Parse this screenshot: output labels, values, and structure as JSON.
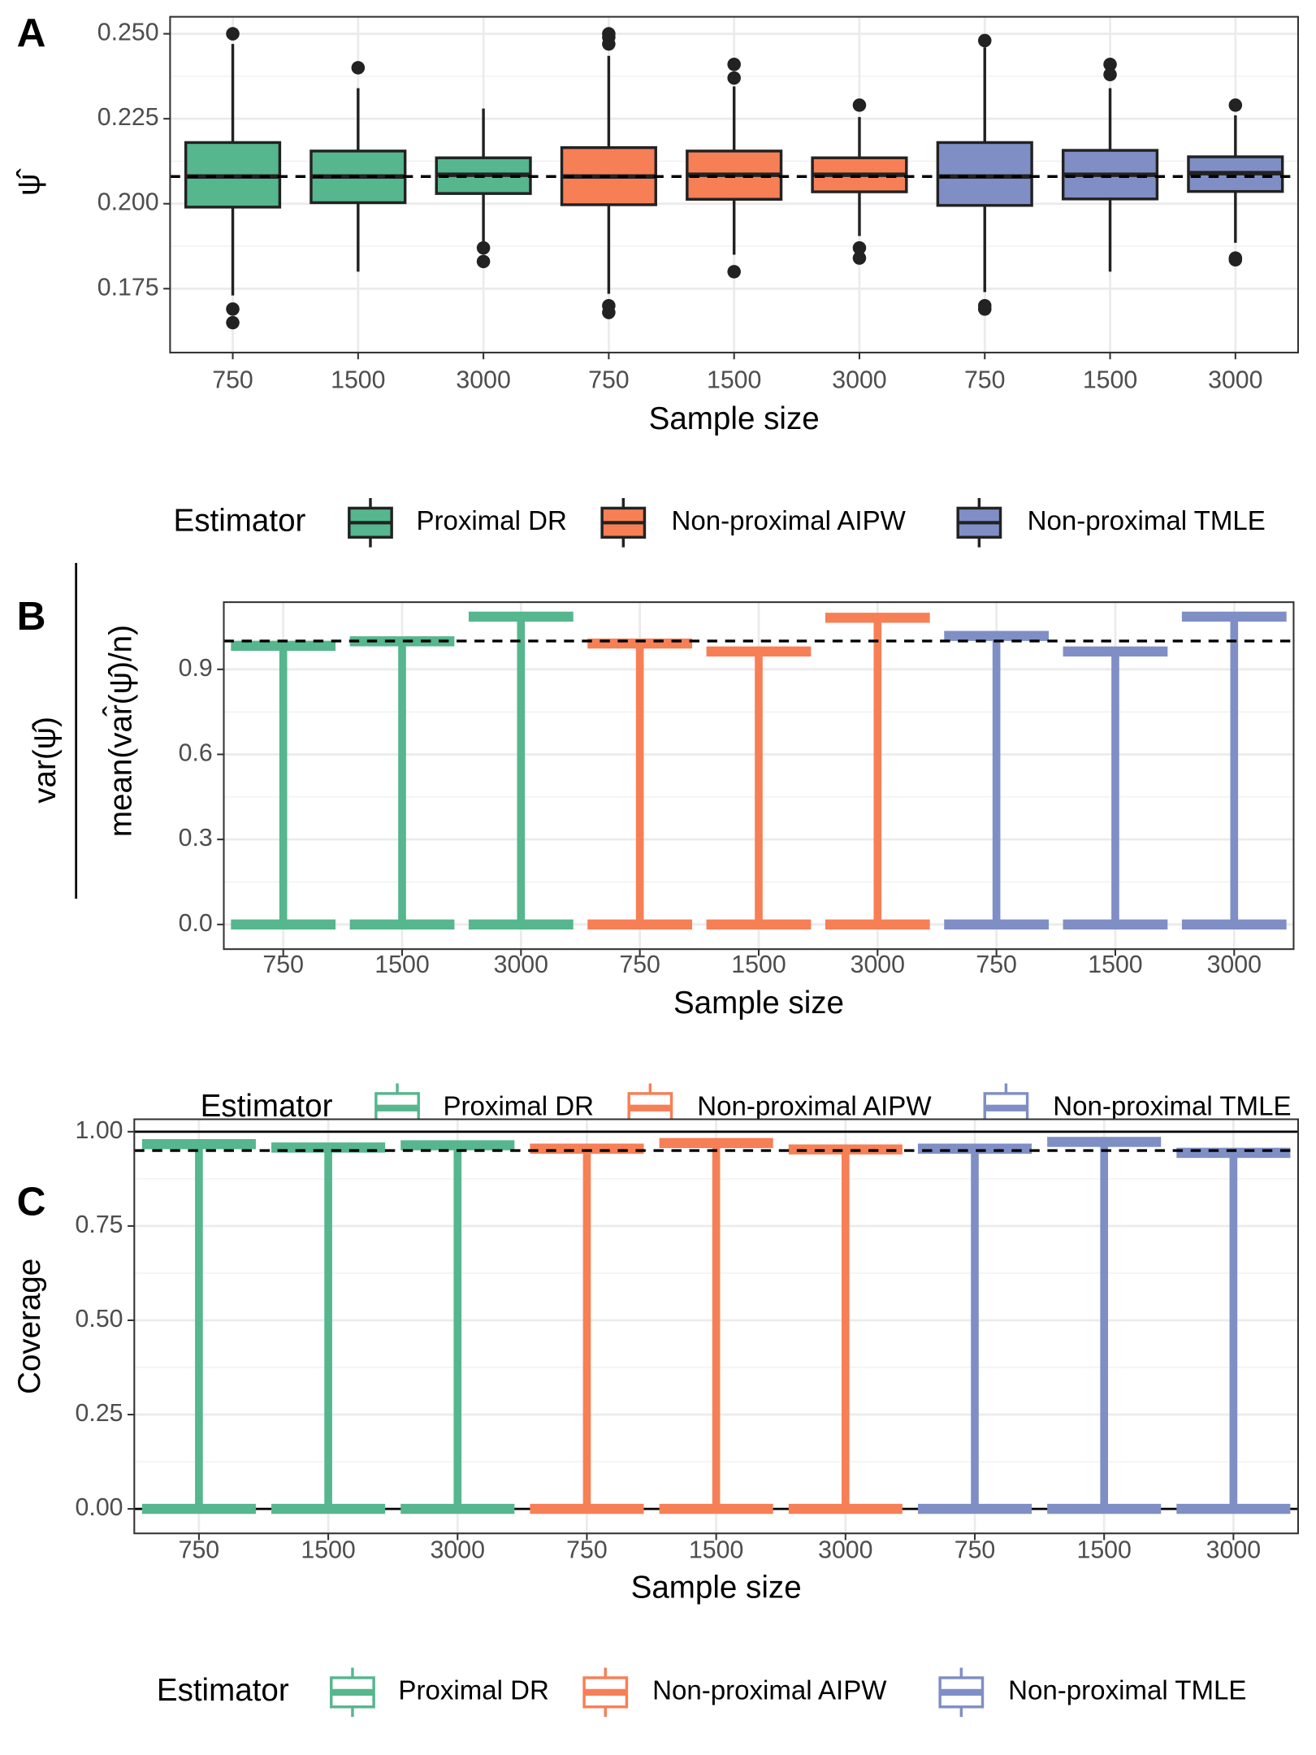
{
  "chart_data": [
    {
      "type": "box",
      "panel": "A",
      "xlabel": "Sample size",
      "ylabel": "ψ̂",
      "legend_title": "Estimator",
      "categories": [
        "750",
        "1500",
        "3000"
      ],
      "ylim": [
        0.1562,
        0.255
      ],
      "yticks": [
        {
          "value": 0.175,
          "label": "0.175"
        },
        {
          "value": 0.2,
          "label": "0.200"
        },
        {
          "value": 0.225,
          "label": "0.225"
        },
        {
          "value": 0.25,
          "label": "0.250"
        }
      ],
      "hline_dashed": 0.208,
      "grid": true,
      "series": [
        {
          "name": "Proximal DR",
          "color": "#56b68e",
          "boxes": [
            {
              "low": 0.173,
              "q1": 0.199,
              "median": 0.208,
              "q3": 0.218,
              "high": 0.247,
              "outliers": [
                0.25,
                0.169,
                0.165
              ]
            },
            {
              "low": 0.18,
              "q1": 0.2003,
              "median": 0.208,
              "q3": 0.2155,
              "high": 0.234,
              "outliers": [
                0.24
              ]
            },
            {
              "low": 0.1885,
              "q1": 0.203,
              "median": 0.2085,
              "q3": 0.2135,
              "high": 0.228,
              "outliers": [
                0.187,
                0.183
              ]
            }
          ]
        },
        {
          "name": "Non-proximal AIPW",
          "color": "#f77f56",
          "boxes": [
            {
              "low": 0.1735,
              "q1": 0.1997,
              "median": 0.208,
              "q3": 0.2165,
              "high": 0.2435,
              "outliers": [
                0.25,
                0.249,
                0.247,
                0.17,
                0.168
              ]
            },
            {
              "low": 0.185,
              "q1": 0.2013,
              "median": 0.2085,
              "q3": 0.2155,
              "high": 0.2345,
              "outliers": [
                0.241,
                0.237,
                0.18
              ]
            },
            {
              "low": 0.1905,
              "q1": 0.2035,
              "median": 0.2085,
              "q3": 0.2135,
              "high": 0.2255,
              "outliers": [
                0.229,
                0.187,
                0.184
              ]
            }
          ]
        },
        {
          "name": "Non-proximal TMLE",
          "color": "#7f8fc5",
          "boxes": [
            {
              "low": 0.174,
              "q1": 0.1995,
              "median": 0.208,
              "q3": 0.218,
              "high": 0.246,
              "outliers": [
                0.248,
                0.17,
                0.169
              ]
            },
            {
              "low": 0.18,
              "q1": 0.2014,
              "median": 0.2085,
              "q3": 0.2157,
              "high": 0.234,
              "outliers": [
                0.241,
                0.238
              ]
            },
            {
              "low": 0.1885,
              "q1": 0.2036,
              "median": 0.209,
              "q3": 0.2138,
              "high": 0.226,
              "outliers": [
                0.229,
                0.184,
                0.1835
              ]
            }
          ]
        }
      ]
    },
    {
      "type": "errorbar",
      "panel": "B",
      "xlabel": "Sample size",
      "ylabel_numerator": "var(ψ̂)",
      "ylabel_denominator": "mean(var̂(ψ̂)/n)",
      "legend_title": "Estimator",
      "categories": [
        "750",
        "1500",
        "3000"
      ],
      "ylim": [
        -0.087,
        1.137
      ],
      "yticks": [
        {
          "value": 0,
          "label": "0.0"
        },
        {
          "value": 0.3,
          "label": "0.3"
        },
        {
          "value": 0.6,
          "label": "0.6"
        },
        {
          "value": 0.9,
          "label": "0.9"
        }
      ],
      "hline_dashed": 1,
      "grid": true,
      "series": [
        {
          "name": "Proximal DR",
          "color": "#56b68e",
          "values": [
            0.983,
            0.999,
            1.086
          ]
        },
        {
          "name": "Non-proximal AIPW",
          "color": "#f77f56",
          "values": [
            0.991,
            0.963,
            1.082
          ]
        },
        {
          "name": "Non-proximal TMLE",
          "color": "#7f8fc5",
          "values": [
            1.018,
            0.963,
            1.086
          ]
        }
      ]
    },
    {
      "type": "errorbar",
      "panel": "C",
      "xlabel": "Sample size",
      "ylabel": "Coverage",
      "legend_title": "Estimator",
      "categories": [
        "750",
        "1500",
        "3000"
      ],
      "ylim": [
        -0.065,
        1.033
      ],
      "yticks": [
        {
          "value": 0,
          "label": "0.00"
        },
        {
          "value": 0.25,
          "label": "0.25"
        },
        {
          "value": 0.5,
          "label": "0.50"
        },
        {
          "value": 0.75,
          "label": "0.75"
        },
        {
          "value": 1,
          "label": "1.00"
        }
      ],
      "hline_dashed": 0.95,
      "hline_solid": [
        0,
        1
      ],
      "grid": true,
      "series": [
        {
          "name": "Proximal DR",
          "color": "#56b68e",
          "values": [
            0.967,
            0.958,
            0.964
          ]
        },
        {
          "name": "Non-proximal AIPW",
          "color": "#f77f56",
          "values": [
            0.955,
            0.97,
            0.953
          ]
        },
        {
          "name": "Non-proximal TMLE",
          "color": "#7f8fc5",
          "values": [
            0.955,
            0.973,
            0.944
          ]
        }
      ]
    }
  ]
}
